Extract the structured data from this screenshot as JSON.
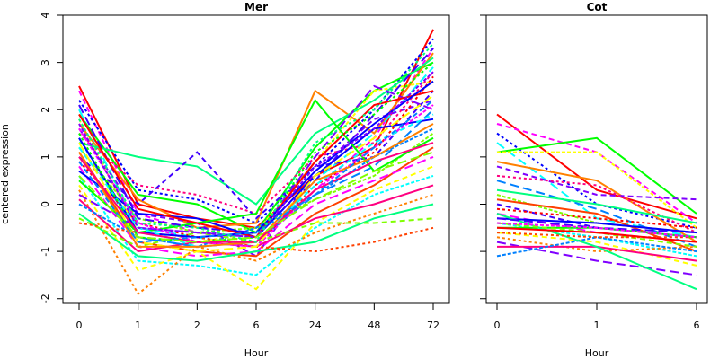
{
  "ylabel": "centered expression",
  "divider_colors": [
    "#ffff00",
    "#66ff00"
  ],
  "chart_data": [
    {
      "type": "line",
      "title": "Mer",
      "xlabel": "Hour",
      "ylabel": "centered expression",
      "categories": [
        "0",
        "1",
        "2",
        "6",
        "24",
        "48",
        "72"
      ],
      "yticks": [
        -2,
        -1,
        0,
        1,
        2,
        3,
        4
      ],
      "ylim": [
        -2.1,
        4
      ],
      "palette": [
        "#ff0000",
        "#ff00ff",
        "#0000ff",
        "#00ffff",
        "#00ff00",
        "#ffff00",
        "#ff8000",
        "#8000ff",
        "#ff0080",
        "#0080ff",
        "#00ff80",
        "#80ff00",
        "#ff4000",
        "#4000ff"
      ],
      "series": [
        {
          "values": [
            2.5,
            0.0,
            -0.3,
            -0.5,
            0.6,
            1.2,
            3.7
          ]
        },
        {
          "values": [
            2.4,
            -0.2,
            -0.6,
            -0.8,
            0.3,
            1.4,
            3.3
          ]
        },
        {
          "values": [
            2.2,
            0.3,
            0.1,
            -0.4,
            0.8,
            2.0,
            3.5
          ]
        },
        {
          "values": [
            2.0,
            -0.5,
            -0.7,
            -0.9,
            0.5,
            1.5,
            2.9
          ]
        },
        {
          "values": [
            1.9,
            0.2,
            0.0,
            -0.6,
            1.2,
            2.4,
            3.0
          ]
        },
        {
          "values": [
            1.8,
            -0.6,
            -0.8,
            -0.6,
            0.9,
            2.4,
            2.6
          ]
        },
        {
          "values": [
            1.7,
            0.1,
            -0.5,
            -0.4,
            2.4,
            1.5,
            3.2
          ]
        },
        {
          "values": [
            1.6,
            -0.2,
            -0.4,
            -1.1,
            0.7,
            1.8,
            2.2
          ]
        },
        {
          "values": [
            1.5,
            0.4,
            0.2,
            -0.2,
            1.0,
            1.3,
            2.8
          ]
        },
        {
          "values": [
            1.4,
            -0.7,
            -0.9,
            -0.8,
            0.2,
            0.8,
            2.0
          ]
        },
        {
          "values": [
            1.3,
            1.0,
            0.8,
            0.0,
            1.5,
            2.2,
            3.1
          ]
        },
        {
          "values": [
            1.2,
            -0.3,
            -0.6,
            -0.5,
            0.1,
            0.6,
            1.5
          ]
        },
        {
          "values": [
            1.1,
            -0.8,
            -1.0,
            -1.1,
            -0.2,
            0.4,
            1.2
          ]
        },
        {
          "values": [
            1.0,
            0.0,
            1.1,
            -0.3,
            0.8,
            1.0,
            2.4
          ]
        },
        {
          "values": [
            0.9,
            -0.4,
            -0.7,
            -0.9,
            0.4,
            1.1,
            2.7
          ]
        },
        {
          "values": [
            0.8,
            -0.9,
            -1.1,
            -1.0,
            0.0,
            0.5,
            1.0
          ]
        },
        {
          "values": [
            0.7,
            -0.2,
            -0.3,
            -0.7,
            0.6,
            1.6,
            1.8
          ]
        },
        {
          "values": [
            0.6,
            -1.2,
            -1.3,
            -1.5,
            -0.5,
            0.2,
            0.6
          ]
        },
        {
          "values": [
            0.5,
            -0.6,
            -0.4,
            -0.2,
            2.2,
            0.7,
            1.4
          ]
        },
        {
          "values": [
            0.4,
            -1.4,
            -1.0,
            -1.8,
            -0.4,
            0.3,
            0.8
          ]
        },
        {
          "values": [
            0.3,
            -1.9,
            -0.9,
            -1.2,
            -0.6,
            -0.2,
            0.2
          ]
        },
        {
          "values": [
            0.2,
            -0.5,
            -0.6,
            -0.7,
            1.0,
            2.5,
            2.0
          ]
        },
        {
          "values": [
            0.1,
            -1.0,
            -0.8,
            -0.9,
            -0.3,
            0.0,
            0.4
          ]
        },
        {
          "values": [
            0.0,
            -0.7,
            -0.9,
            -0.5,
            0.2,
            1.0,
            1.6
          ]
        },
        {
          "values": [
            -0.2,
            -1.1,
            -1.2,
            -1.0,
            -0.8,
            -0.3,
            0.0
          ]
        },
        {
          "values": [
            -0.3,
            -0.9,
            -0.6,
            -0.8,
            -0.4,
            -0.4,
            -0.3
          ]
        },
        {
          "values": [
            -0.4,
            -0.6,
            -0.7,
            -0.9,
            -1.0,
            -0.8,
            -0.5
          ]
        },
        {
          "values": [
            2.1,
            -0.3,
            -0.5,
            -0.6,
            0.5,
            1.9,
            3.3
          ]
        },
        {
          "values": [
            1.9,
            -0.1,
            -0.4,
            -0.7,
            0.9,
            2.1,
            2.4
          ]
        },
        {
          "values": [
            1.6,
            -0.4,
            -0.8,
            -0.9,
            0.3,
            1.2,
            2.1
          ]
        },
        {
          "values": [
            1.4,
            -0.6,
            -0.7,
            -0.6,
            0.7,
            1.7,
            2.6
          ]
        },
        {
          "values": [
            1.2,
            -0.5,
            -0.9,
            -0.8,
            0.4,
            1.3,
            1.9
          ]
        },
        {
          "values": [
            1.5,
            -0.7,
            -0.8,
            -0.7,
            1.1,
            1.9,
            3.0
          ]
        },
        {
          "values": [
            1.3,
            -0.8,
            -1.0,
            -0.9,
            0.6,
            1.4,
            2.3
          ]
        },
        {
          "values": [
            1.1,
            -0.9,
            -0.9,
            -0.8,
            0.5,
            1.0,
            1.7
          ]
        },
        {
          "values": [
            1.7,
            -0.5,
            -0.6,
            -0.7,
            0.8,
            1.6,
            2.8
          ]
        },
        {
          "values": [
            1.0,
            -0.6,
            -0.8,
            -0.8,
            0.3,
            0.9,
            1.3
          ]
        },
        {
          "values": [
            0.9,
            -0.8,
            -0.7,
            -0.6,
            0.2,
            1.2,
            2.2
          ]
        },
        {
          "values": [
            1.8,
            -0.4,
            -0.5,
            -0.8,
            1.3,
            2.0,
            3.4
          ]
        },
        {
          "values": [
            0.6,
            -0.7,
            -0.8,
            -0.7,
            0.1,
            0.7,
            1.1
          ]
        }
      ]
    },
    {
      "type": "line",
      "title": "Cot",
      "xlabel": "Hour",
      "categories": [
        "0",
        "1",
        "6"
      ],
      "yticks": [
        -2,
        -1,
        0,
        1,
        2,
        3,
        4
      ],
      "ylim": [
        -2.1,
        4
      ],
      "palette": [
        "#ff0000",
        "#ff00ff",
        "#0000ff",
        "#00ffff",
        "#00ff00",
        "#ffff00",
        "#ff8000",
        "#8000ff",
        "#ff0080",
        "#0080ff",
        "#00ff80",
        "#80ff00",
        "#ff4000",
        "#4000ff"
      ],
      "series": [
        {
          "values": [
            1.9,
            0.3,
            -0.3
          ]
        },
        {
          "values": [
            1.7,
            1.1,
            -0.4
          ]
        },
        {
          "values": [
            1.5,
            0.0,
            -0.5
          ]
        },
        {
          "values": [
            1.3,
            -0.3,
            -0.7
          ]
        },
        {
          "values": [
            1.1,
            1.4,
            -0.2
          ]
        },
        {
          "values": [
            1.1,
            1.1,
            -0.5
          ]
        },
        {
          "values": [
            0.9,
            0.5,
            -0.8
          ]
        },
        {
          "values": [
            0.8,
            0.2,
            0.1
          ]
        },
        {
          "values": [
            0.6,
            0.4,
            -0.6
          ]
        },
        {
          "values": [
            0.5,
            -0.1,
            -0.9
          ]
        },
        {
          "values": [
            0.3,
            0.0,
            -0.4
          ]
        },
        {
          "values": [
            0.2,
            -0.4,
            -0.6
          ]
        },
        {
          "values": [
            0.1,
            -0.2,
            -1.0
          ]
        },
        {
          "values": [
            0.0,
            -0.5,
            -0.7
          ]
        },
        {
          "values": [
            -0.1,
            -0.3,
            -0.5
          ]
        },
        {
          "values": [
            -0.2,
            -0.6,
            -0.8
          ]
        },
        {
          "values": [
            -0.3,
            -0.4,
            -0.6
          ]
        },
        {
          "values": [
            -0.4,
            -0.7,
            -1.1
          ]
        },
        {
          "values": [
            -0.5,
            -0.5,
            -0.7
          ]
        },
        {
          "values": [
            -0.6,
            -0.8,
            -1.3
          ]
        },
        {
          "values": [
            -0.7,
            -1.0,
            -0.9
          ]
        },
        {
          "values": [
            -0.8,
            -1.2,
            -1.5
          ]
        },
        {
          "values": [
            -0.9,
            -0.9,
            -1.2
          ]
        },
        {
          "values": [
            -1.1,
            -0.7,
            -1.0
          ]
        },
        {
          "values": [
            -0.2,
            -0.9,
            -1.8
          ]
        },
        {
          "values": [
            -0.4,
            -0.6,
            -0.9
          ]
        },
        {
          "values": [
            -0.6,
            -0.7,
            -0.7
          ]
        },
        {
          "values": [
            -0.3,
            -0.5,
            -0.6
          ]
        },
        {
          "values": [
            -0.5,
            -0.6,
            -0.8
          ]
        },
        {
          "values": [
            -0.4,
            -0.5,
            -0.7
          ]
        }
      ]
    }
  ]
}
